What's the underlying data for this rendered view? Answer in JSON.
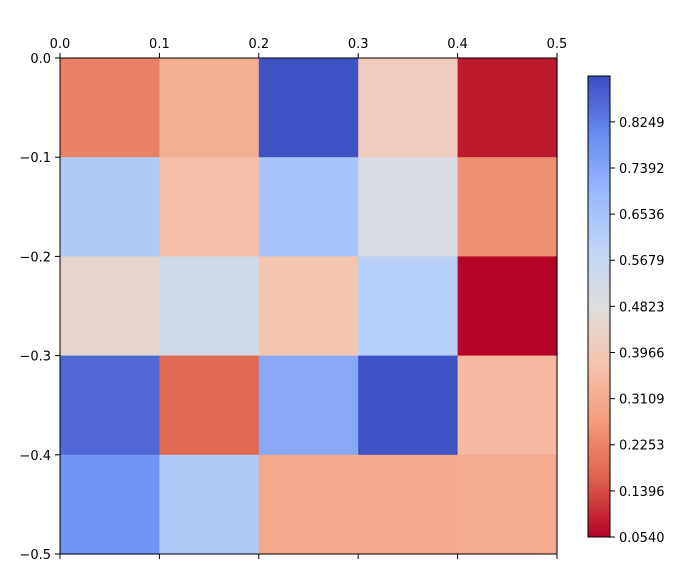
{
  "chart_data": {
    "type": "heatmap",
    "colormap": "coolwarm_r",
    "x_ticks": [
      "0.0",
      "0.1",
      "0.2",
      "0.3",
      "0.4",
      "0.5"
    ],
    "y_ticks": [
      "0.0",
      "−0.1",
      "−0.2",
      "−0.3",
      "−0.4",
      "−0.5"
    ],
    "x_range": [
      0.0,
      0.5
    ],
    "y_range": [
      0.0,
      -0.5
    ],
    "x_axis_position": "top",
    "values": [
      [
        0.22,
        0.32,
        0.9,
        0.41,
        0.08
      ],
      [
        0.63,
        0.36,
        0.65,
        0.5,
        0.25
      ],
      [
        0.45,
        0.53,
        0.38,
        0.61,
        0.054
      ],
      [
        0.86,
        0.18,
        0.73,
        0.9,
        0.35
      ],
      [
        0.78,
        0.63,
        0.3,
        0.3,
        0.31
      ]
    ],
    "colorbar": {
      "min": 0.054,
      "max": 0.91,
      "tick_values": [
        0.054,
        0.1396,
        0.2253,
        0.3109,
        0.3966,
        0.4823,
        0.5679,
        0.6536,
        0.7392,
        0.8249
      ],
      "tick_labels": [
        "0.0540",
        "0.1396",
        "0.2253",
        "0.3109",
        "0.3966",
        "0.4823",
        "0.5679",
        "0.6536",
        "0.7392",
        "0.8249"
      ]
    }
  }
}
